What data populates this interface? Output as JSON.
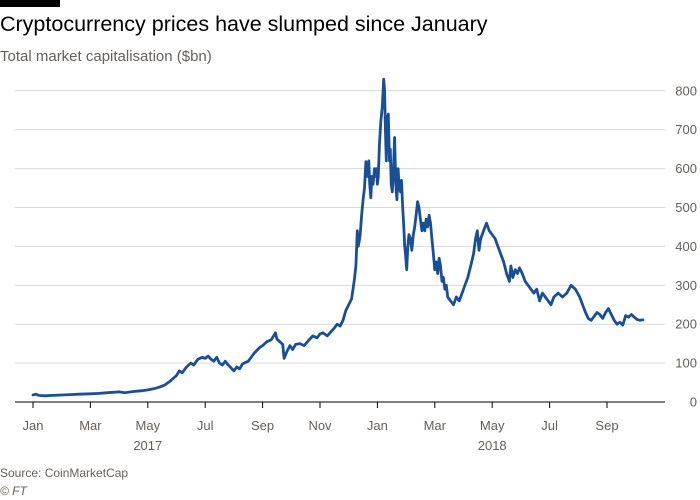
{
  "header": {
    "title": "Cryptocurrency prices have slumped since January",
    "subtitle": "Total market capitalisation ($bn)"
  },
  "footer": {
    "source": "Source: CoinMarketCap",
    "credit": "© FT"
  },
  "colors": {
    "line": "#1a4f96",
    "grid": "#d9d9d9",
    "text": "#66605c"
  },
  "chart_data": {
    "type": "line",
    "title": "Cryptocurrency prices have slumped since January",
    "subtitle": "Total market capitalisation ($bn)",
    "xlabel": "",
    "ylabel": "",
    "ylim": [
      0,
      800
    ],
    "yticks": [
      0,
      100,
      200,
      300,
      400,
      500,
      600,
      700,
      800
    ],
    "y_axis_side": "right",
    "grid": true,
    "x_range_months": [
      0,
      21.3
    ],
    "month_ticks": [
      {
        "label": "Jan",
        "m": 0
      },
      {
        "label": "Mar",
        "m": 2
      },
      {
        "label": "May",
        "m": 4
      },
      {
        "label": "Jul",
        "m": 6
      },
      {
        "label": "Sep",
        "m": 8
      },
      {
        "label": "Nov",
        "m": 10
      },
      {
        "label": "Jan",
        "m": 12
      },
      {
        "label": "Mar",
        "m": 14
      },
      {
        "label": "May",
        "m": 16
      },
      {
        "label": "Jul",
        "m": 18
      },
      {
        "label": "Sep",
        "m": 20
      }
    ],
    "year_labels": [
      {
        "label": "2017",
        "m": 4
      },
      {
        "label": "2018",
        "m": 16
      }
    ],
    "series": [
      {
        "name": "Total market capitalisation",
        "points": [
          [
            0.0,
            18
          ],
          [
            0.1,
            20
          ],
          [
            0.2,
            17
          ],
          [
            0.4,
            16
          ],
          [
            0.7,
            17
          ],
          [
            1.0,
            18
          ],
          [
            1.3,
            19
          ],
          [
            1.6,
            20
          ],
          [
            2.0,
            21
          ],
          [
            2.3,
            22
          ],
          [
            2.6,
            24
          ],
          [
            3.0,
            26
          ],
          [
            3.2,
            24
          ],
          [
            3.5,
            27
          ],
          [
            3.8,
            29
          ],
          [
            4.0,
            31
          ],
          [
            4.2,
            34
          ],
          [
            4.4,
            38
          ],
          [
            4.6,
            44
          ],
          [
            4.8,
            55
          ],
          [
            5.0,
            68
          ],
          [
            5.1,
            80
          ],
          [
            5.2,
            75
          ],
          [
            5.35,
            90
          ],
          [
            5.5,
            100
          ],
          [
            5.6,
            95
          ],
          [
            5.75,
            110
          ],
          [
            5.9,
            115
          ],
          [
            6.0,
            112
          ],
          [
            6.1,
            118
          ],
          [
            6.2,
            110
          ],
          [
            6.3,
            105
          ],
          [
            6.4,
            115
          ],
          [
            6.5,
            100
          ],
          [
            6.6,
            95
          ],
          [
            6.7,
            105
          ],
          [
            6.8,
            95
          ],
          [
            6.9,
            88
          ],
          [
            7.0,
            80
          ],
          [
            7.1,
            90
          ],
          [
            7.2,
            85
          ],
          [
            7.3,
            98
          ],
          [
            7.5,
            105
          ],
          [
            7.7,
            125
          ],
          [
            7.9,
            140
          ],
          [
            8.0,
            145
          ],
          [
            8.15,
            155
          ],
          [
            8.3,
            160
          ],
          [
            8.4,
            172
          ],
          [
            8.45,
            178
          ],
          [
            8.5,
            162
          ],
          [
            8.6,
            155
          ],
          [
            8.7,
            148
          ],
          [
            8.75,
            112
          ],
          [
            8.85,
            130
          ],
          [
            8.95,
            145
          ],
          [
            9.05,
            135
          ],
          [
            9.15,
            148
          ],
          [
            9.3,
            150
          ],
          [
            9.45,
            145
          ],
          [
            9.6,
            158
          ],
          [
            9.75,
            170
          ],
          [
            9.9,
            165
          ],
          [
            10.0,
            175
          ],
          [
            10.1,
            178
          ],
          [
            10.25,
            170
          ],
          [
            10.4,
            182
          ],
          [
            10.5,
            190
          ],
          [
            10.6,
            200
          ],
          [
            10.7,
            195
          ],
          [
            10.8,
            210
          ],
          [
            10.9,
            235
          ],
          [
            11.0,
            250
          ],
          [
            11.1,
            265
          ],
          [
            11.15,
            290
          ],
          [
            11.2,
            315
          ],
          [
            11.25,
            350
          ],
          [
            11.3,
            440
          ],
          [
            11.33,
            400
          ],
          [
            11.36,
            410
          ],
          [
            11.4,
            430
          ],
          [
            11.45,
            480
          ],
          [
            11.5,
            520
          ],
          [
            11.55,
            550
          ],
          [
            11.6,
            618
          ],
          [
            11.65,
            580
          ],
          [
            11.7,
            620
          ],
          [
            11.73,
            560
          ],
          [
            11.77,
            525
          ],
          [
            11.81,
            580
          ],
          [
            11.85,
            560
          ],
          [
            11.9,
            600
          ],
          [
            11.93,
            580
          ],
          [
            11.97,
            600
          ],
          [
            12.0,
            560
          ],
          [
            12.03,
            580
          ],
          [
            12.07,
            660
          ],
          [
            12.12,
            720
          ],
          [
            12.17,
            760
          ],
          [
            12.22,
            830
          ],
          [
            12.25,
            800
          ],
          [
            12.28,
            700
          ],
          [
            12.31,
            620
          ],
          [
            12.35,
            730
          ],
          [
            12.38,
            740
          ],
          [
            12.42,
            620
          ],
          [
            12.45,
            650
          ],
          [
            12.48,
            560
          ],
          [
            12.52,
            540
          ],
          [
            12.56,
            600
          ],
          [
            12.6,
            680
          ],
          [
            12.64,
            560
          ],
          [
            12.68,
            520
          ],
          [
            12.72,
            600
          ],
          [
            12.76,
            550
          ],
          [
            12.8,
            540
          ],
          [
            12.84,
            570
          ],
          [
            12.88,
            500
          ],
          [
            12.92,
            450
          ],
          [
            12.95,
            400
          ],
          [
            12.98,
            380
          ],
          [
            13.02,
            340
          ],
          [
            13.06,
            400
          ],
          [
            13.1,
            430
          ],
          [
            13.15,
            420
          ],
          [
            13.2,
            390
          ],
          [
            13.25,
            430
          ],
          [
            13.3,
            450
          ],
          [
            13.35,
            480
          ],
          [
            13.4,
            515
          ],
          [
            13.45,
            500
          ],
          [
            13.5,
            470
          ],
          [
            13.55,
            440
          ],
          [
            13.6,
            460
          ],
          [
            13.65,
            440
          ],
          [
            13.7,
            470
          ],
          [
            13.75,
            450
          ],
          [
            13.8,
            480
          ],
          [
            13.85,
            460
          ],
          [
            13.9,
            420
          ],
          [
            13.95,
            380
          ],
          [
            14.0,
            340
          ],
          [
            14.05,
            360
          ],
          [
            14.1,
            330
          ],
          [
            14.15,
            370
          ],
          [
            14.2,
            350
          ],
          [
            14.25,
            310
          ],
          [
            14.3,
            320
          ],
          [
            14.35,
            290
          ],
          [
            14.4,
            300
          ],
          [
            14.45,
            270
          ],
          [
            14.55,
            260
          ],
          [
            14.65,
            250
          ],
          [
            14.75,
            270
          ],
          [
            14.85,
            260
          ],
          [
            14.95,
            280
          ],
          [
            15.05,
            300
          ],
          [
            15.15,
            320
          ],
          [
            15.25,
            350
          ],
          [
            15.35,
            380
          ],
          [
            15.42,
            420
          ],
          [
            15.48,
            440
          ],
          [
            15.54,
            390
          ],
          [
            15.6,
            420
          ],
          [
            15.7,
            440
          ],
          [
            15.8,
            460
          ],
          [
            15.9,
            440
          ],
          [
            16.0,
            430
          ],
          [
            16.1,
            420
          ],
          [
            16.2,
            400
          ],
          [
            16.3,
            380
          ],
          [
            16.4,
            360
          ],
          [
            16.5,
            330
          ],
          [
            16.6,
            310
          ],
          [
            16.65,
            350
          ],
          [
            16.72,
            320
          ],
          [
            16.8,
            340
          ],
          [
            16.88,
            330
          ],
          [
            16.95,
            345
          ],
          [
            17.05,
            330
          ],
          [
            17.15,
            310
          ],
          [
            17.25,
            300
          ],
          [
            17.35,
            290
          ],
          [
            17.45,
            280
          ],
          [
            17.55,
            290
          ],
          [
            17.65,
            260
          ],
          [
            17.75,
            280
          ],
          [
            17.85,
            270
          ],
          [
            17.95,
            260
          ],
          [
            18.05,
            250
          ],
          [
            18.15,
            270
          ],
          [
            18.3,
            280
          ],
          [
            18.45,
            270
          ],
          [
            18.6,
            280
          ],
          [
            18.75,
            300
          ],
          [
            18.9,
            290
          ],
          [
            19.05,
            270
          ],
          [
            19.15,
            250
          ],
          [
            19.25,
            230
          ],
          [
            19.35,
            215
          ],
          [
            19.45,
            210
          ],
          [
            19.55,
            220
          ],
          [
            19.65,
            230
          ],
          [
            19.75,
            225
          ],
          [
            19.85,
            215
          ],
          [
            19.95,
            230
          ],
          [
            20.05,
            240
          ],
          [
            20.15,
            225
          ],
          [
            20.25,
            210
          ],
          [
            20.35,
            200
          ],
          [
            20.45,
            205
          ],
          [
            20.55,
            198
          ],
          [
            20.65,
            222
          ],
          [
            20.75,
            218
          ],
          [
            20.85,
            225
          ],
          [
            20.95,
            218
          ],
          [
            21.05,
            212
          ],
          [
            21.15,
            210
          ],
          [
            21.25,
            211
          ]
        ]
      }
    ]
  }
}
